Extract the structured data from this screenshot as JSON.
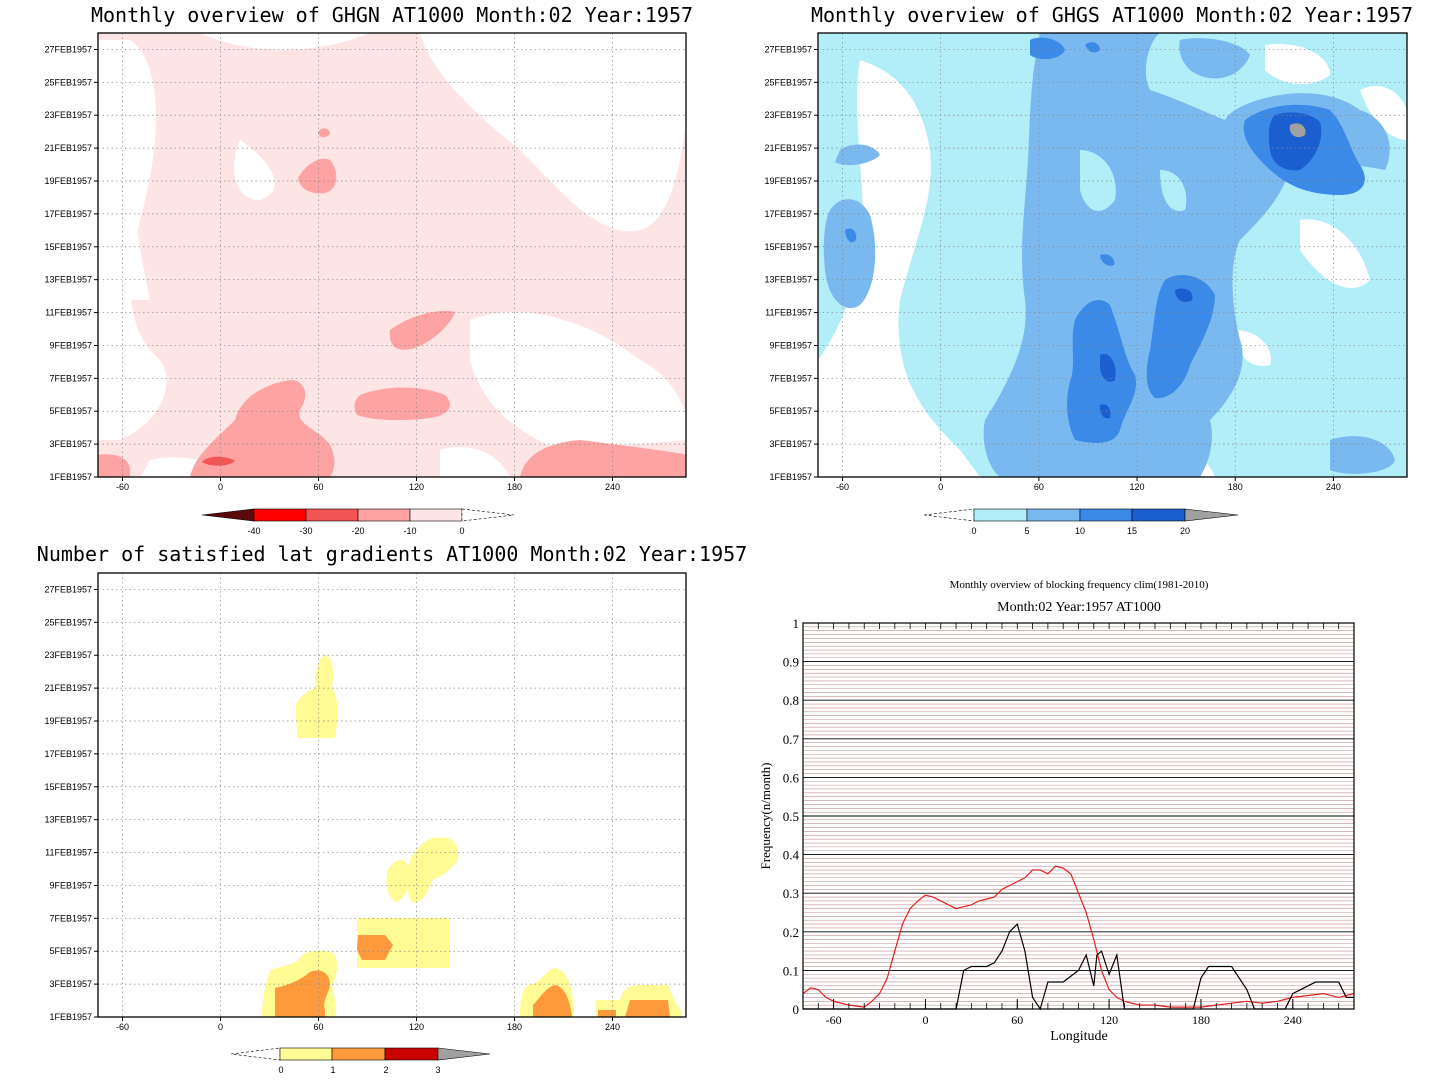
{
  "chart_data": [
    {
      "type": "heatmap",
      "title": "Monthly overview of GHGN AT1000 Month:02 Year:1957",
      "x_ticks": [
        "-60",
        "0",
        "60",
        "120",
        "180",
        "240"
      ],
      "y_ticks": [
        "1FEB1957",
        "3FEB1957",
        "5FEB1957",
        "7FEB1957",
        "9FEB1957",
        "11FEB1957",
        "13FEB1957",
        "15FEB1957",
        "17FEB1957",
        "19FEB1957",
        "21FEB1957",
        "23FEB1957",
        "25FEB1957",
        "27FEB1957"
      ],
      "xlim": [
        -75,
        285
      ],
      "ylim": [
        1,
        28
      ],
      "grid": true,
      "colorbar_labels": [
        "-40",
        "-30",
        "-20",
        "-10",
        "0"
      ],
      "colorbar_colors": [
        "#5a0a0a",
        "#ff0000",
        "#f35454",
        "#fda3a3",
        "#fde5e5",
        "#ffffff"
      ],
      "regions": [
        {
          "level": -10,
          "color": "#fde5e5",
          "lon": [
            -75,
            285
          ],
          "day": [
            1,
            28
          ],
          "note": "broad pale-pink field"
        },
        {
          "level": -20,
          "color": "#fda3a3",
          "lon": [
            -20,
            70
          ],
          "day": [
            1,
            7
          ]
        },
        {
          "level": -20,
          "color": "#fda3a3",
          "lon": [
            80,
            135
          ],
          "day": [
            5,
            6.5
          ]
        },
        {
          "level": -20,
          "color": "#fda3a3",
          "lon": [
            100,
            140
          ],
          "day": [
            9.5,
            11.5
          ]
        },
        {
          "level": -20,
          "color": "#fda3a3",
          "lon": [
            40,
            65
          ],
          "day": [
            19,
            21
          ]
        },
        {
          "level": -20,
          "color": "#fda3a3",
          "lon": [
            180,
            285
          ],
          "day": [
            1,
            3
          ]
        },
        {
          "level": -30,
          "color": "#f35454",
          "lon": [
            -15,
            5
          ],
          "day": [
            1.6,
            2.2
          ]
        }
      ]
    },
    {
      "type": "heatmap",
      "title": "Monthly overview of GHGS AT1000 Month:02 Year:1957",
      "x_ticks": [
        "-60",
        "0",
        "60",
        "120",
        "180",
        "240"
      ],
      "y_ticks": [
        "1FEB1957",
        "3FEB1957",
        "5FEB1957",
        "7FEB1957",
        "9FEB1957",
        "11FEB1957",
        "13FEB1957",
        "15FEB1957",
        "17FEB1957",
        "19FEB1957",
        "21FEB1957",
        "23FEB1957",
        "25FEB1957",
        "27FEB1957"
      ],
      "xlim": [
        -75,
        285
      ],
      "ylim": [
        1,
        28
      ],
      "grid": true,
      "colorbar_labels": [
        "0",
        "5",
        "10",
        "15",
        "20"
      ],
      "colorbar_colors": [
        "#ffffff",
        "#b2eef8",
        "#7ab8f0",
        "#3c8ae8",
        "#1a5ed0",
        "#a0a0a0"
      ],
      "regions": [
        {
          "level": 5,
          "color": "#b2eef8",
          "lon": [
            -75,
            285
          ],
          "day": [
            1,
            28
          ]
        },
        {
          "level": 10,
          "color": "#7ab8f0",
          "lon": [
            50,
            180
          ],
          "day": [
            1,
            28
          ]
        },
        {
          "level": 15,
          "color": "#3c8ae8",
          "lon": [
            70,
            150
          ],
          "day": [
            3,
            11
          ]
        },
        {
          "level": 15,
          "color": "#3c8ae8",
          "lon": [
            170,
            270
          ],
          "day": [
            19,
            24
          ]
        },
        {
          "level": 20,
          "color": "#1a5ed0",
          "lon": [
            200,
            230
          ],
          "day": [
            20,
            23
          ]
        },
        {
          "level": 20,
          "color": "#a0a0a0",
          "lon": [
            205,
            215
          ],
          "day": [
            22,
            22.6
          ]
        }
      ]
    },
    {
      "type": "heatmap",
      "title": "Number of satisfied lat gradients AT1000 Month:02 Year:1957",
      "x_ticks": [
        "-60",
        "0",
        "60",
        "120",
        "180",
        "240"
      ],
      "y_ticks": [
        "1FEB1957",
        "3FEB1957",
        "5FEB1957",
        "7FEB1957",
        "9FEB1957",
        "11FEB1957",
        "13FEB1957",
        "15FEB1957",
        "17FEB1957",
        "19FEB1957",
        "21FEB1957",
        "23FEB1957",
        "25FEB1957",
        "27FEB1957"
      ],
      "xlim": [
        -75,
        285
      ],
      "ylim": [
        1,
        28
      ],
      "grid": true,
      "colorbar_labels": [
        "0",
        "1",
        "2",
        "3"
      ],
      "colorbar_colors": [
        "#ffffff",
        "#fffb95",
        "#fe9a3b",
        "#c80000",
        "#a0a0a0"
      ],
      "regions": [
        {
          "level": 1,
          "color": "#fffb95",
          "lon": [
            20,
            68
          ],
          "day": [
            1,
            5
          ]
        },
        {
          "level": 2,
          "color": "#fe9a3b",
          "lon": [
            28,
            62
          ],
          "day": [
            1,
            3
          ]
        },
        {
          "level": 1,
          "color": "#fffb95",
          "lon": [
            80,
            135
          ],
          "day": [
            4.5,
            7.5
          ]
        },
        {
          "level": 2,
          "color": "#fe9a3b",
          "lon": [
            80,
            100
          ],
          "day": [
            5,
            6
          ]
        },
        {
          "level": 1,
          "color": "#fffb95",
          "lon": [
            95,
            140
          ],
          "day": [
            9,
            12
          ]
        },
        {
          "level": 1,
          "color": "#fffb95",
          "lon": [
            40,
            70
          ],
          "day": [
            19,
            23
          ]
        },
        {
          "level": 1,
          "color": "#fffb95",
          "lon": [
            175,
            205
          ],
          "day": [
            1,
            4
          ]
        },
        {
          "level": 2,
          "color": "#fe9a3b",
          "lon": [
            185,
            205
          ],
          "day": [
            1,
            3
          ]
        },
        {
          "level": 1,
          "color": "#fffb95",
          "lon": [
            220,
            278
          ],
          "day": [
            1,
            3
          ]
        },
        {
          "level": 2,
          "color": "#fe9a3b",
          "lon": [
            235,
            270
          ],
          "day": [
            1,
            2
          ]
        }
      ]
    },
    {
      "type": "line",
      "title": "Monthly overview of blocking frequency clim(1981-2010)",
      "subtitle": "Month:02 Year:1957  AT1000",
      "xlabel": "Longitude",
      "ylabel": "Frequency(n/month)",
      "x_ticks": [
        "-60",
        "0",
        "60",
        "120",
        "180",
        "240"
      ],
      "y_ticks": [
        "0",
        "0.1",
        "0.2",
        "0.3",
        "0.4",
        "0.5",
        "0.6",
        "0.7",
        "0.8",
        "0.9",
        "1"
      ],
      "xlim": [
        -80,
        280
      ],
      "ylim": [
        0,
        1
      ],
      "grid": true,
      "series": [
        {
          "color": "#e02020",
          "points": [
            [
              -80,
              0.04
            ],
            [
              -75,
              0.055
            ],
            [
              -70,
              0.05
            ],
            [
              -65,
              0.03
            ],
            [
              -60,
              0.02
            ],
            [
              -50,
              0.01
            ],
            [
              -40,
              0.005
            ],
            [
              -35,
              0.02
            ],
            [
              -30,
              0.04
            ],
            [
              -25,
              0.08
            ],
            [
              -20,
              0.15
            ],
            [
              -15,
              0.22
            ],
            [
              -10,
              0.26
            ],
            [
              -5,
              0.28
            ],
            [
              0,
              0.295
            ],
            [
              5,
              0.29
            ],
            [
              10,
              0.28
            ],
            [
              15,
              0.27
            ],
            [
              20,
              0.26
            ],
            [
              25,
              0.265
            ],
            [
              30,
              0.27
            ],
            [
              35,
              0.28
            ],
            [
              40,
              0.285
            ],
            [
              45,
              0.29
            ],
            [
              50,
              0.31
            ],
            [
              55,
              0.32
            ],
            [
              60,
              0.33
            ],
            [
              65,
              0.34
            ],
            [
              70,
              0.36
            ],
            [
              75,
              0.36
            ],
            [
              80,
              0.35
            ],
            [
              85,
              0.37
            ],
            [
              90,
              0.365
            ],
            [
              95,
              0.35
            ],
            [
              100,
              0.3
            ],
            [
              105,
              0.25
            ],
            [
              110,
              0.18
            ],
            [
              115,
              0.1
            ],
            [
              120,
              0.05
            ],
            [
              125,
              0.03
            ],
            [
              130,
              0.02
            ],
            [
              140,
              0.01
            ],
            [
              150,
              0.01
            ],
            [
              160,
              0.005
            ],
            [
              170,
              0.005
            ],
            [
              180,
              0.005
            ],
            [
              190,
              0.01
            ],
            [
              200,
              0.015
            ],
            [
              210,
              0.02
            ],
            [
              220,
              0.015
            ],
            [
              230,
              0.02
            ],
            [
              240,
              0.03
            ],
            [
              250,
              0.035
            ],
            [
              260,
              0.04
            ],
            [
              270,
              0.03
            ],
            [
              275,
              0.035
            ],
            [
              280,
              0.04
            ]
          ]
        },
        {
          "color": "#000000",
          "points": [
            [
              -80,
              0
            ],
            [
              20,
              0
            ],
            [
              25,
              0.1
            ],
            [
              30,
              0.11
            ],
            [
              40,
              0.11
            ],
            [
              45,
              0.12
            ],
            [
              50,
              0.15
            ],
            [
              55,
              0.2
            ],
            [
              60,
              0.22
            ],
            [
              65,
              0.15
            ],
            [
              70,
              0.03
            ],
            [
              75,
              0
            ],
            [
              80,
              0.07
            ],
            [
              90,
              0.07
            ],
            [
              100,
              0.1
            ],
            [
              105,
              0.14
            ],
            [
              110,
              0.06
            ],
            [
              112,
              0.14
            ],
            [
              115,
              0.15
            ],
            [
              120,
              0.09
            ],
            [
              125,
              0.14
            ],
            [
              130,
              0
            ],
            [
              175,
              0
            ],
            [
              180,
              0.08
            ],
            [
              185,
              0.11
            ],
            [
              200,
              0.11
            ],
            [
              205,
              0.08
            ],
            [
              210,
              0.05
            ],
            [
              215,
              0
            ],
            [
              235,
              0
            ],
            [
              240,
              0.04
            ],
            [
              250,
              0.06
            ],
            [
              255,
              0.07
            ],
            [
              270,
              0.07
            ],
            [
              275,
              0.03
            ],
            [
              280,
              0.03
            ]
          ]
        }
      ]
    }
  ]
}
